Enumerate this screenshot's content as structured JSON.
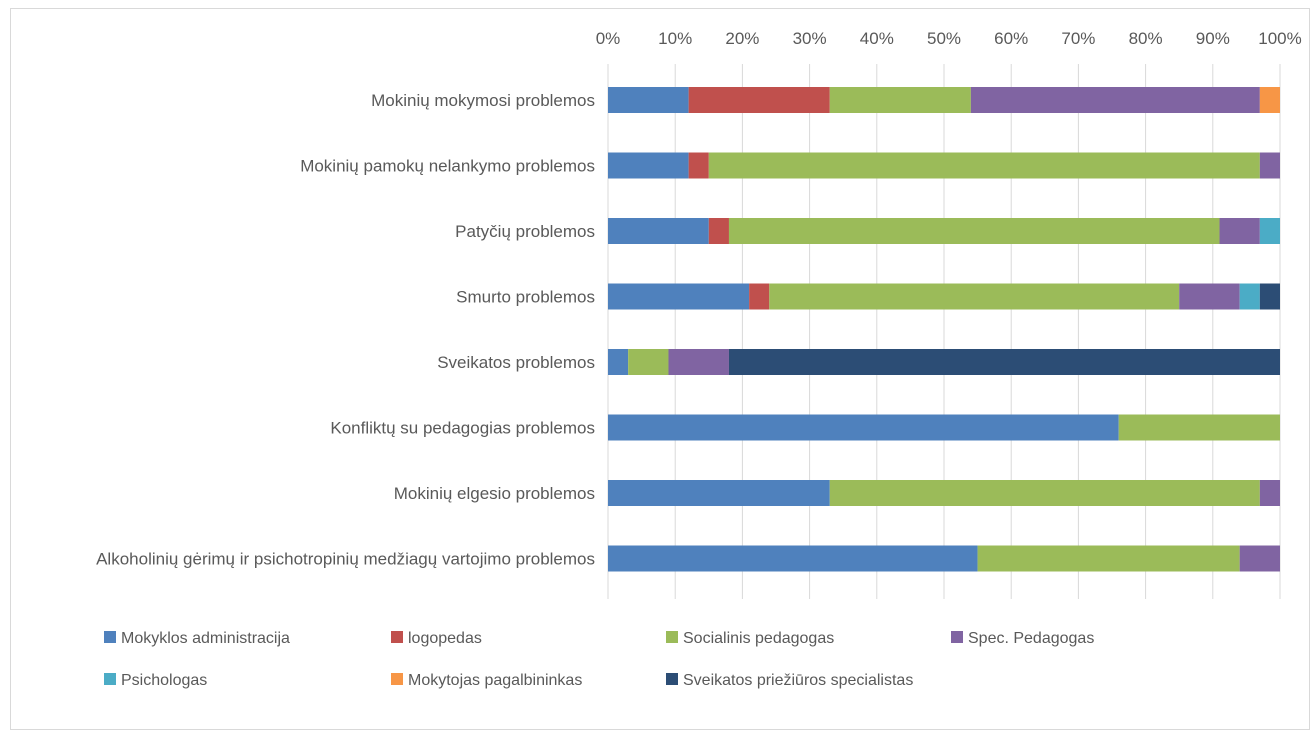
{
  "chart_data": {
    "type": "bar",
    "orientation": "horizontal",
    "stacked": "percent",
    "xlim": [
      0,
      100
    ],
    "x_ticks": [
      "0%",
      "10%",
      "20%",
      "30%",
      "40%",
      "50%",
      "60%",
      "70%",
      "80%",
      "90%",
      "100%"
    ],
    "x_axis_position": "top",
    "grid": true,
    "legend_position": "bottom",
    "categories": [
      "Mokinių mokymosi problemos",
      "Mokinių pamokų nelankymo problemos",
      "Patyčių problemos",
      "Smurto problemos",
      "Sveikatos problemos",
      "Konfliktų su pedagogias problemos",
      "Mokinių elgesio  problemos",
      "Alkoholinių gėrimų ir psichotropinių medžiagų vartojimo problemos"
    ],
    "series": [
      {
        "name": "Mokyklos administracija",
        "color": "#4F81BD",
        "values": [
          12,
          12,
          15,
          21,
          3,
          76,
          33,
          55
        ]
      },
      {
        "name": "logopedas",
        "color": "#C0504D",
        "values": [
          21,
          3,
          3,
          3,
          0,
          0,
          0,
          0
        ]
      },
      {
        "name": "Socialinis pedagogas",
        "color": "#9BBB59",
        "values": [
          21,
          82,
          73,
          61,
          6,
          24,
          64,
          39
        ]
      },
      {
        "name": "Spec. Pedagogas",
        "color": "#8064A2",
        "values": [
          43,
          3,
          6,
          9,
          9,
          0,
          3,
          6
        ]
      },
      {
        "name": "Psichologas",
        "color": "#4BACC6",
        "values": [
          0,
          0,
          3,
          3,
          0,
          0,
          0,
          0
        ]
      },
      {
        "name": "Mokytojas pagalbininkas",
        "color": "#F79646",
        "values": [
          3,
          0,
          0,
          0,
          0,
          0,
          0,
          0
        ]
      },
      {
        "name": "Sveikatos priežiūros specialistas",
        "color": "#2C4D75",
        "values": [
          0,
          0,
          0,
          3,
          82,
          0,
          0,
          0
        ]
      }
    ]
  }
}
